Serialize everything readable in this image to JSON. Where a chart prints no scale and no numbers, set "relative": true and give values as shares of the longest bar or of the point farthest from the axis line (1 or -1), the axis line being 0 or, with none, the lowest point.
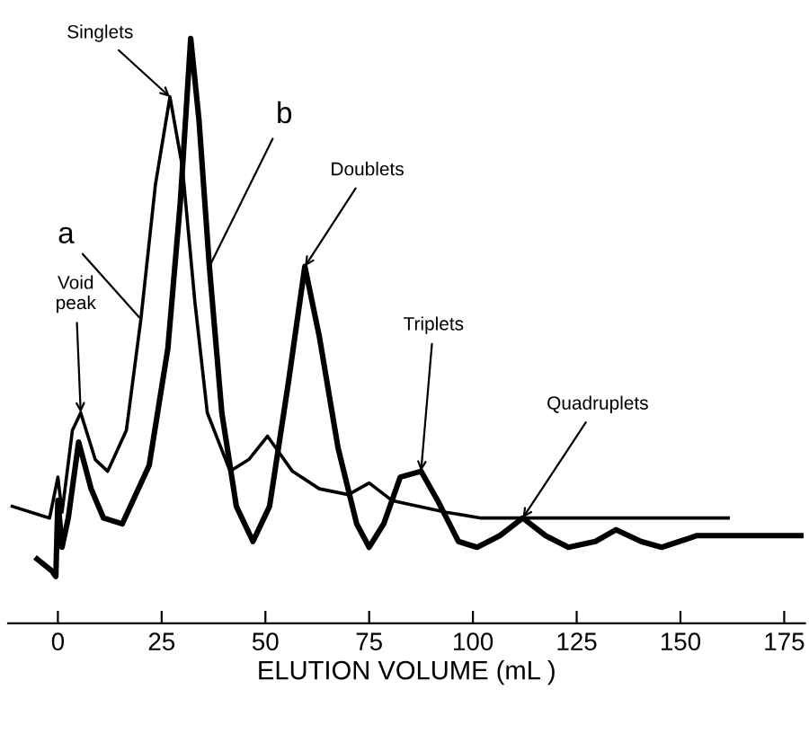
{
  "chart_data": {
    "type": "line",
    "relative": true,
    "xlabel": "ELUTION VOLUME (mL )",
    "xlim": [
      -12,
      180
    ],
    "xticks": [
      0,
      25,
      50,
      75,
      100,
      125,
      150,
      175
    ],
    "grid": false,
    "legend": false,
    "marker": "none",
    "line_style": "solid",
    "series": [
      {
        "name": "a",
        "color": "#000000",
        "x": [
          -11,
          -2,
          0,
          1,
          3.5,
          5.5,
          9,
          12,
          16.5,
          20,
          23.5,
          27,
          30,
          33,
          36,
          41.5,
          46,
          50.5,
          56.5,
          63,
          70,
          75,
          80.5,
          87,
          93.5,
          102,
          115,
          161.5
        ],
        "values": [
          0.2,
          0.18,
          0.25,
          0.19,
          0.33,
          0.36,
          0.28,
          0.26,
          0.33,
          0.52,
          0.75,
          0.9,
          0.78,
          0.55,
          0.36,
          0.26,
          0.28,
          0.32,
          0.26,
          0.23,
          0.22,
          0.24,
          0.21,
          0.2,
          0.19,
          0.18,
          0.18,
          0.18
        ]
      },
      {
        "name": "b",
        "color": "#000000",
        "x": [
          -5,
          -1.5,
          -0.5,
          0,
          1,
          2.5,
          5,
          8,
          11,
          15.5,
          22,
          26.5,
          29.5,
          32,
          34,
          36.5,
          39.5,
          43,
          47,
          51,
          55.5,
          59.5,
          63,
          67.5,
          72,
          75,
          78.5,
          82.5,
          87.5,
          91.5,
          96.5,
          101,
          106.5,
          112,
          117.5,
          123,
          129.5,
          134.5,
          140.5,
          145.5,
          154,
          179
        ],
        "values": [
          0.11,
          0.09,
          0.08,
          0.21,
          0.13,
          0.18,
          0.31,
          0.23,
          0.18,
          0.17,
          0.27,
          0.47,
          0.72,
          1,
          0.86,
          0.61,
          0.36,
          0.2,
          0.14,
          0.2,
          0.41,
          0.61,
          0.49,
          0.3,
          0.17,
          0.13,
          0.17,
          0.25,
          0.26,
          0.21,
          0.14,
          0.13,
          0.15,
          0.18,
          0.15,
          0.13,
          0.14,
          0.16,
          0.14,
          0.13,
          0.15,
          0.15
        ]
      }
    ],
    "annotations": [
      {
        "text": "Singlets",
        "x": 27,
        "y": 0.9
      },
      {
        "text": "Doublets",
        "x": 59.5,
        "y": 0.61
      },
      {
        "text": "Triplets",
        "x": 87.5,
        "y": 0.26
      },
      {
        "text": "Quadruplets",
        "x": 112,
        "y": 0.18
      },
      {
        "text": "Void\npeak",
        "x": 5.5,
        "y": 0.36
      }
    ]
  }
}
